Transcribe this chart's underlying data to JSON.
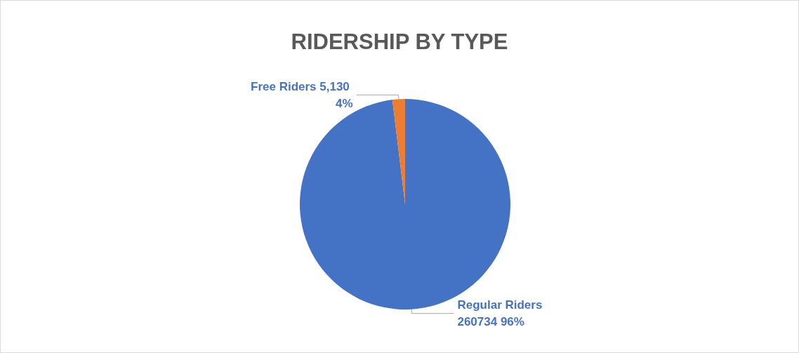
{
  "chart_data": {
    "type": "pie",
    "title": "RIDERSHIP BY TYPE",
    "categories": [
      "Regular Riders",
      "Free Riders"
    ],
    "values": [
      260734,
      5130
    ],
    "value_labels": [
      "260734 96%",
      "5,130 4%"
    ],
    "colors": [
      "#4472c4",
      "#ed7d31"
    ],
    "legend": false
  }
}
